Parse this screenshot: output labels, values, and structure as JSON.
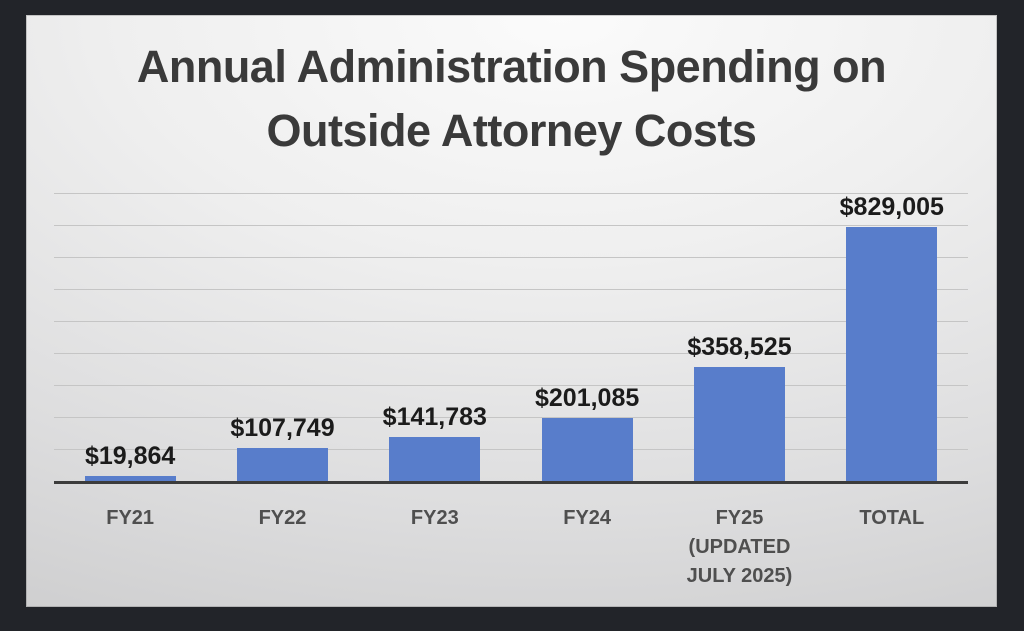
{
  "window": {
    "frame_background": "#222429"
  },
  "slide": {
    "background_center": "#fbfbfb",
    "background_edge": "#cbcbcc"
  },
  "colors": {
    "bar": "#587dcb",
    "gridline": "#c5c5c5",
    "axis": "#3c3c3c",
    "title": "#3a3a3a",
    "value_label": "#1b1b1b",
    "category_label": "#4f4f4f",
    "frame": "#222429"
  },
  "chart_data": {
    "type": "bar",
    "title": "Annual Administration Spending on Outside Attorney Costs",
    "title_lines": [
      "Annual Administration Spending on",
      "Outside Attorney Costs"
    ],
    "categories": [
      "FY21",
      "FY22",
      "FY23",
      "FY24",
      "FY25\n(UPDATED\nJULY 2025)",
      "TOTAL"
    ],
    "values": [
      19864,
      107749,
      141783,
      201085,
      358525,
      829005
    ],
    "value_labels": [
      "$19,864",
      "$107,749",
      "$141,783",
      "$201,085",
      "$358,525",
      "$829,005"
    ],
    "xlabel": "",
    "ylabel": "",
    "ylim": [
      0,
      900000
    ],
    "gridline_step": 100000,
    "grid": true,
    "legend": false,
    "y_tick_labels_visible": false
  }
}
